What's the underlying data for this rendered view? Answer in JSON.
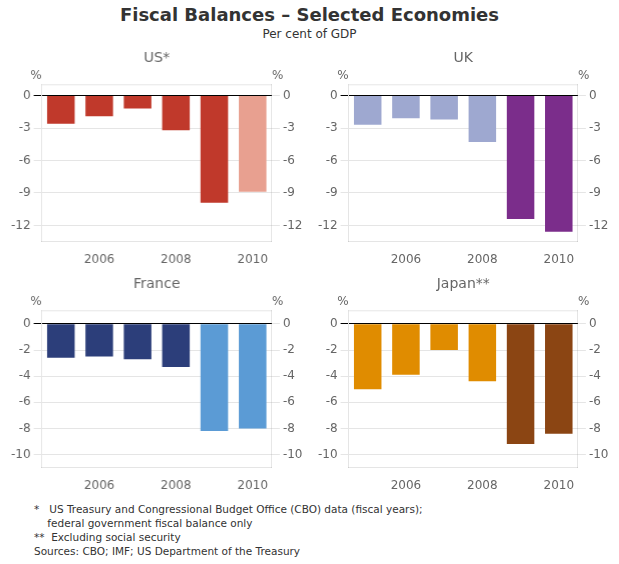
{
  "title": "Fiscal Balances – Selected Economies",
  "subtitle": "Per cent of GDP",
  "annotations": [
    "*   US Treasury and Congressional Budget Office (CBO) data (fiscal years);",
    "    federal government fiscal balance only",
    "**  Excluding social security",
    "Sources: CBO; IMF; US Department of the Treasury"
  ],
  "chart_data": [
    {
      "type": "bar",
      "title": "US*",
      "categories": [
        null,
        "2006",
        null,
        "2008",
        null,
        "2010"
      ],
      "values": [
        -2.6,
        -1.9,
        -1.2,
        -3.2,
        -9.9,
        -8.9
      ],
      "colors": [
        "#C0392B",
        "#C0392B",
        "#C0392B",
        "#C0392B",
        "#C0392B",
        "#E8A090"
      ],
      "ylabel": "%",
      "ylim": [
        -13.5,
        1.0
      ],
      "yticks": [
        0,
        -3,
        -6,
        -9,
        -12
      ],
      "y2label": "%",
      "y2lim": [
        -13.5,
        1.0
      ],
      "y2ticks": [
        0,
        -3,
        -6,
        -9,
        -12
      ],
      "grid": true
    },
    {
      "type": "bar",
      "title": "UK",
      "categories": [
        null,
        "2006",
        null,
        "2008",
        null,
        "2010"
      ],
      "values": [
        -2.7,
        -2.1,
        -2.2,
        -4.3,
        -11.4,
        -12.6
      ],
      "colors": [
        "#9EA8D0",
        "#9EA8D0",
        "#9EA8D0",
        "#9EA8D0",
        "#7B2D8B",
        "#7B2D8B"
      ],
      "ylabel": "%",
      "ylim": [
        -13.5,
        1.0
      ],
      "yticks": [
        0,
        -3,
        -6,
        -9,
        -12
      ],
      "y2label": "%",
      "y2lim": [
        -13.5,
        1.0
      ],
      "y2ticks": [
        0,
        -3,
        -6,
        -9,
        -12
      ],
      "grid": true
    },
    {
      "type": "bar",
      "title": "France",
      "categories": [
        null,
        "2006",
        null,
        "2008",
        null,
        "2010"
      ],
      "values": [
        -2.6,
        -2.5,
        -2.7,
        -3.3,
        -8.2,
        -8.0
      ],
      "colors": [
        "#2C3E7A",
        "#2C3E7A",
        "#2C3E7A",
        "#2C3E7A",
        "#5B9BD5",
        "#5B9BD5"
      ],
      "ylabel": "%",
      "ylim": [
        -11.0,
        1.0
      ],
      "yticks": [
        0,
        -2,
        -4,
        -6,
        -8,
        -10
      ],
      "y2label": "%",
      "y2lim": [
        -11.0,
        1.0
      ],
      "y2ticks": [
        0,
        -2,
        -4,
        -6,
        -8,
        -10
      ],
      "grid": true
    },
    {
      "type": "bar",
      "title": "Japan**",
      "categories": [
        null,
        "2006",
        null,
        "2008",
        null,
        "2010"
      ],
      "values": [
        -5.0,
        -3.9,
        -2.0,
        -4.4,
        -9.2,
        -8.4
      ],
      "colors": [
        "#E08C00",
        "#E08C00",
        "#E08C00",
        "#E08C00",
        "#8B4513",
        "#8B4513"
      ],
      "ylabel": "%",
      "ylim": [
        -11.0,
        1.0
      ],
      "yticks": [
        0,
        -2,
        -4,
        -6,
        -8,
        -10
      ],
      "y2label": "%",
      "y2lim": [
        -11.0,
        1.0
      ],
      "y2ticks": [
        0,
        -2,
        -4,
        -6,
        -8,
        -10
      ],
      "grid": true
    }
  ]
}
